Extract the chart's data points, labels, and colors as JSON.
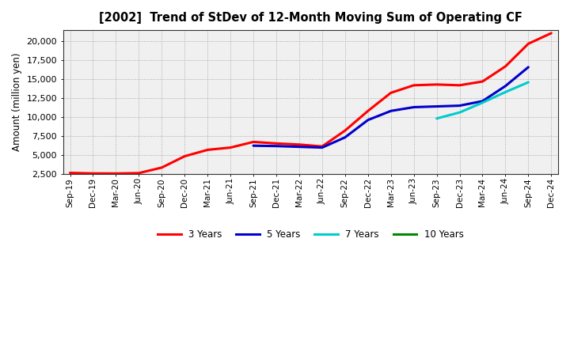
{
  "title": "[2002]  Trend of StDev of 12-Month Moving Sum of Operating CF",
  "ylabel": "Amount (million yen)",
  "background_color": "#FFFFFF",
  "grid_color": "#999999",
  "plot_bg_color": "#F0F0F0",
  "ylim": [
    2500,
    21500
  ],
  "yticks": [
    2500,
    5000,
    7500,
    10000,
    12500,
    15000,
    17500,
    20000
  ],
  "x_labels": [
    "Sep-19",
    "Dec-19",
    "Mar-20",
    "Jun-20",
    "Sep-20",
    "Dec-20",
    "Mar-21",
    "Jun-21",
    "Sep-21",
    "Dec-21",
    "Mar-22",
    "Jun-22",
    "Sep-22",
    "Dec-22",
    "Mar-23",
    "Jun-23",
    "Sep-23",
    "Dec-23",
    "Mar-24",
    "Jun-24",
    "Sep-24",
    "Dec-24"
  ],
  "series": {
    "3yr": {
      "color": "#FF0000",
      "label": "3 Years",
      "data": [
        2600,
        2530,
        2520,
        2570,
        3300,
        4800,
        5650,
        5950,
        6700,
        6500,
        6350,
        6100,
        8200,
        10800,
        13200,
        14200,
        14300,
        14200,
        14700,
        16700,
        19700,
        21100
      ]
    },
    "5yr": {
      "color": "#0000CC",
      "label": "5 Years",
      "data": [
        null,
        null,
        null,
        null,
        null,
        null,
        null,
        null,
        6200,
        6150,
        6050,
        5950,
        7300,
        9600,
        10800,
        11300,
        11400,
        11500,
        12100,
        14100,
        16600,
        null
      ]
    },
    "7yr": {
      "color": "#00CCCC",
      "label": "7 Years",
      "data": [
        null,
        null,
        null,
        null,
        null,
        null,
        null,
        null,
        null,
        null,
        null,
        null,
        null,
        null,
        null,
        null,
        9800,
        10600,
        11900,
        13300,
        14600,
        null
      ]
    },
    "10yr": {
      "color": "#008800",
      "label": "10 Years",
      "data": [
        null,
        null,
        null,
        null,
        null,
        null,
        null,
        null,
        null,
        null,
        null,
        null,
        null,
        null,
        null,
        null,
        null,
        null,
        null,
        null,
        null,
        null
      ]
    }
  }
}
